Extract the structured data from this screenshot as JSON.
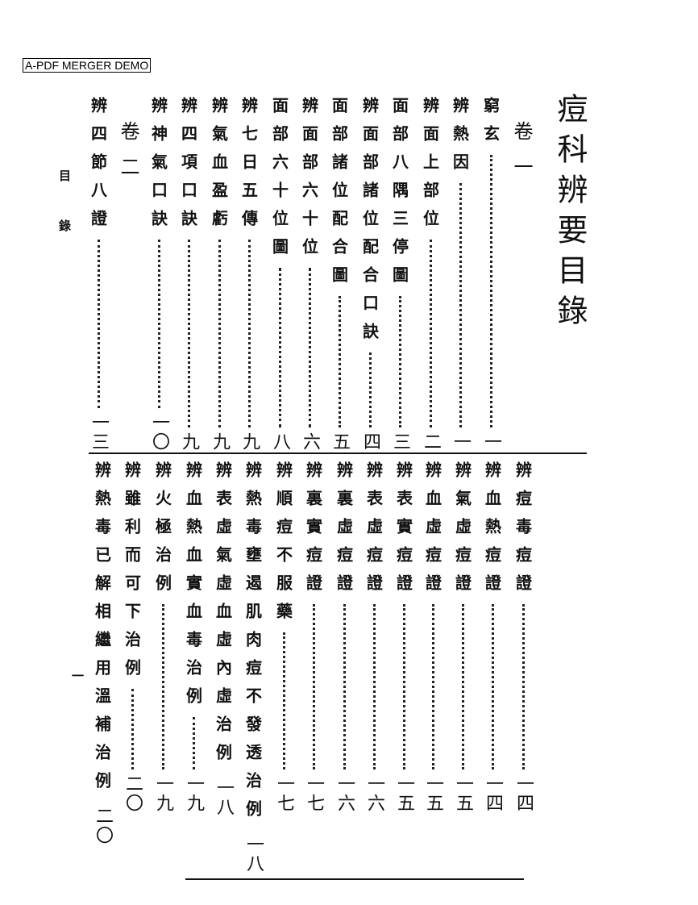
{
  "watermark": "A-PDF MERGER DEMO",
  "title": "痘科辨要目錄",
  "margin": {
    "label_1": "目",
    "label_2": "錄",
    "page": "一"
  },
  "volume_1": "卷一",
  "volume_2": "卷二",
  "top_entries": [
    {
      "title": "窮玄",
      "page": "一"
    },
    {
      "title": "辨熱因",
      "page": "一"
    },
    {
      "title": "辨面上部位",
      "page": "二"
    },
    {
      "title": "面部八隅三停圖",
      "page": "三"
    },
    {
      "title": "辨面部諸位配合口訣",
      "page": "四"
    },
    {
      "title": "面部諸位配合圖",
      "page": "五"
    },
    {
      "title": "辨面部六十位",
      "page": "六"
    },
    {
      "title": "面部六十位圖",
      "page": "八"
    },
    {
      "title": "辨七日五傳",
      "page": "九"
    },
    {
      "title": "辨氣血盈虧",
      "page": "九"
    },
    {
      "title": "辨四項口訣",
      "page": "九"
    },
    {
      "title": "辨神氣口訣",
      "page": "一〇"
    },
    {
      "title": "辨四節八證",
      "page": "一三"
    }
  ],
  "bottom_entries": [
    {
      "title": "辨痘毒痘證",
      "page": "一四"
    },
    {
      "title": "辨血熱痘證",
      "page": "一四"
    },
    {
      "title": "辨氣虛痘證",
      "page": "一五"
    },
    {
      "title": "辨血虛痘證",
      "page": "一五"
    },
    {
      "title": "辨表實痘證",
      "page": "一五"
    },
    {
      "title": "辨表虛痘證",
      "page": "一六"
    },
    {
      "title": "辨裏虛痘證",
      "page": "一六"
    },
    {
      "title": "辨裏實痘證",
      "page": "一七"
    },
    {
      "title": "辨順痘不服藥",
      "page": "一七"
    },
    {
      "title": "辨熱毒壅遏肌肉痘不發透治例",
      "page": "一八"
    },
    {
      "title": "辨表虛氣虛血虛內虛治例",
      "page": "一八"
    },
    {
      "title": "辨血熱血實血毒治例",
      "page": "一九"
    },
    {
      "title": "辨火極治例",
      "page": "一九"
    },
    {
      "title": "辨雖利而可下治例",
      "page": "二〇"
    },
    {
      "title": "辨熱毒已解相繼用溫補治例",
      "page": "二〇"
    }
  ]
}
